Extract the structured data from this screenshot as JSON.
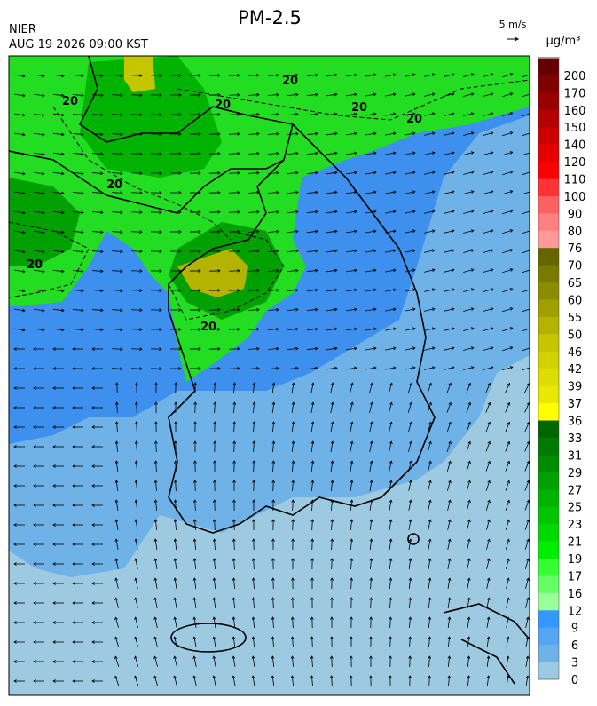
{
  "header": {
    "title": "PM-2.5",
    "source": "NIER",
    "datetime": "AUG 19 2026 09:00 KST",
    "wind_scale": "5 m/s"
  },
  "map": {
    "contour_label": "20"
  },
  "legend": {
    "unit": "µg/m³",
    "labels": [
      200,
      170,
      160,
      150,
      140,
      120,
      110,
      100,
      90,
      80,
      76,
      70,
      65,
      60,
      55,
      50,
      46,
      42,
      39,
      37,
      36,
      33,
      31,
      29,
      27,
      25,
      23,
      21,
      19,
      17,
      16,
      12,
      9,
      6,
      3,
      0
    ],
    "colors": [
      "#660000",
      "#800000",
      "#990000",
      "#b30000",
      "#cc0000",
      "#e60000",
      "#ff0000",
      "#ff3333",
      "#ff6060",
      "#ff8080",
      "#ff9999",
      "#666600",
      "#7a7a00",
      "#8c8c00",
      "#a0a000",
      "#b3b300",
      "#c6c600",
      "#d2d200",
      "#dddd00",
      "#e8e800",
      "#ffff00",
      "#006600",
      "#007a00",
      "#008c00",
      "#00a000",
      "#00b300",
      "#00c600",
      "#00d900",
      "#00ee00",
      "#33ff33",
      "#66ff66",
      "#99ff99",
      "#3399ff",
      "#55a5f0",
      "#6eb2e8",
      "#9ecae1"
    ]
  }
}
